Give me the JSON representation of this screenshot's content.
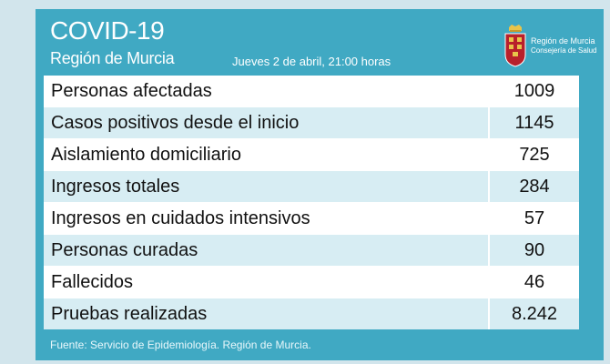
{
  "header": {
    "title": "COVID-19",
    "subtitle": "Región de Murcia",
    "date": "Jueves 2 de abril, 21:00 horas"
  },
  "logo": {
    "icon": "murcia-coat-of-arms-icon",
    "line1": "Región de Murcia",
    "line2": "Consejería de Salud"
  },
  "table": {
    "rows": [
      {
        "label": "Personas afectadas",
        "value": "1009"
      },
      {
        "label": "Casos positivos desde el inicio",
        "value": "1145"
      },
      {
        "label": "Aislamiento domiciliario",
        "value": "725"
      },
      {
        "label": "Ingresos totales",
        "value": "284"
      },
      {
        "label": "Ingresos en cuidados intensivos",
        "value": "57"
      },
      {
        "label": "Personas curadas",
        "value": "90"
      },
      {
        "label": "Fallecidos",
        "value": "46"
      },
      {
        "label": "Pruebas realizadas",
        "value": "8.242"
      }
    ]
  },
  "footer": {
    "source": "Fuente: Servicio de Epidemiología. Región de Murcia."
  },
  "colors": {
    "card": "#40a9c3",
    "row_alt": "#d7edf3",
    "background": "#d2e5ec"
  }
}
